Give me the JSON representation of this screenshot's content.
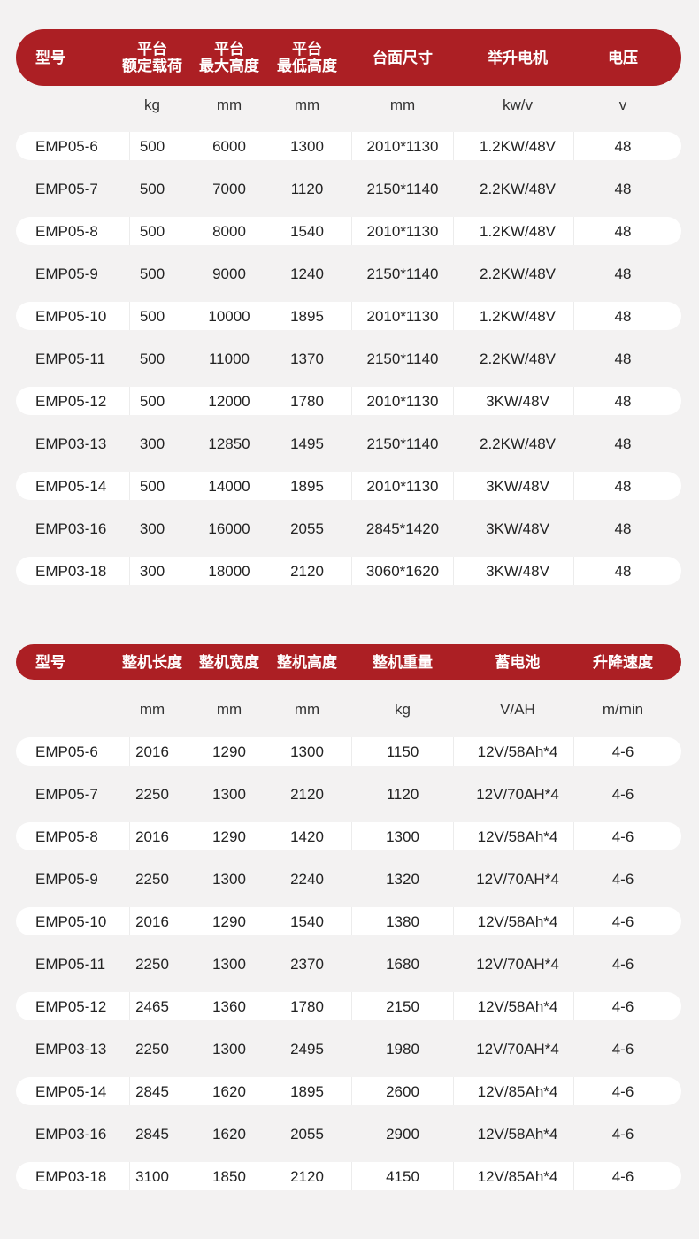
{
  "colors": {
    "header_bg": "#ac1f24",
    "page_bg": "#f3f2f2",
    "row_bg": "#ffffff"
  },
  "table1": {
    "headers": [
      "型号",
      "平台\n额定载荷",
      "平台\n最大高度",
      "平台\n最低高度",
      "台面尺寸",
      "举升电机",
      "电压"
    ],
    "units": [
      "",
      "kg",
      "mm",
      "mm",
      "mm",
      "kw/v",
      "v"
    ],
    "rows": [
      [
        "EMP05-6",
        "500",
        "6000",
        "1300",
        "2010*1130",
        "1.2KW/48V",
        "48"
      ],
      [
        "EMP05-7",
        "500",
        "7000",
        "1120",
        "2150*1140",
        "2.2KW/48V",
        "48"
      ],
      [
        "EMP05-8",
        "500",
        "8000",
        "1540",
        "2010*1130",
        "1.2KW/48V",
        "48"
      ],
      [
        "EMP05-9",
        "500",
        "9000",
        "1240",
        "2150*1140",
        "2.2KW/48V",
        "48"
      ],
      [
        "EMP05-10",
        "500",
        "10000",
        "1895",
        "2010*1130",
        "1.2KW/48V",
        "48"
      ],
      [
        "EMP05-11",
        "500",
        "11000",
        "1370",
        "2150*1140",
        "2.2KW/48V",
        "48"
      ],
      [
        "EMP05-12",
        "500",
        "12000",
        "1780",
        "2010*1130",
        "3KW/48V",
        "48"
      ],
      [
        "EMP03-13",
        "300",
        "12850",
        "1495",
        "2150*1140",
        "2.2KW/48V",
        "48"
      ],
      [
        "EMP05-14",
        "500",
        "14000",
        "1895",
        "2010*1130",
        "3KW/48V",
        "48"
      ],
      [
        "EMP03-16",
        "300",
        "16000",
        "2055",
        "2845*1420",
        "3KW/48V",
        "48"
      ],
      [
        "EMP03-18",
        "300",
        "18000",
        "2120",
        "3060*1620",
        "3KW/48V",
        "48"
      ]
    ]
  },
  "table2": {
    "headers": [
      "型号",
      "整机长度",
      "整机宽度",
      "整机高度",
      "整机重量",
      "蓄电池",
      "升降速度"
    ],
    "units": [
      "",
      "mm",
      "mm",
      "mm",
      "kg",
      "V/AH",
      "m/min"
    ],
    "rows": [
      [
        "EMP05-6",
        "2016",
        "1290",
        "1300",
        "1150",
        "12V/58Ah*4",
        "4-6"
      ],
      [
        "EMP05-7",
        "2250",
        "1300",
        "2120",
        "1120",
        "12V/70AH*4",
        "4-6"
      ],
      [
        "EMP05-8",
        "2016",
        "1290",
        "1420",
        "1300",
        "12V/58Ah*4",
        "4-6"
      ],
      [
        "EMP05-9",
        "2250",
        "1300",
        "2240",
        "1320",
        "12V/70AH*4",
        "4-6"
      ],
      [
        "EMP05-10",
        "2016",
        "1290",
        "1540",
        "1380",
        "12V/58Ah*4",
        "4-6"
      ],
      [
        "EMP05-11",
        "2250",
        "1300",
        "2370",
        "1680",
        "12V/70AH*4",
        "4-6"
      ],
      [
        "EMP05-12",
        "2465",
        "1360",
        "1780",
        "2150",
        "12V/58Ah*4",
        "4-6"
      ],
      [
        "EMP03-13",
        "2250",
        "1300",
        "2495",
        "1980",
        "12V/70AH*4",
        "4-6"
      ],
      [
        "EMP05-14",
        "2845",
        "1620",
        "1895",
        "2600",
        "12V/85Ah*4",
        "4-6"
      ],
      [
        "EMP03-16",
        "2845",
        "1620",
        "2055",
        "2900",
        "12V/58Ah*4",
        "4-6"
      ],
      [
        "EMP03-18",
        "3100",
        "1850",
        "2120",
        "4150",
        "12V/85Ah*4",
        "4-6"
      ]
    ]
  }
}
